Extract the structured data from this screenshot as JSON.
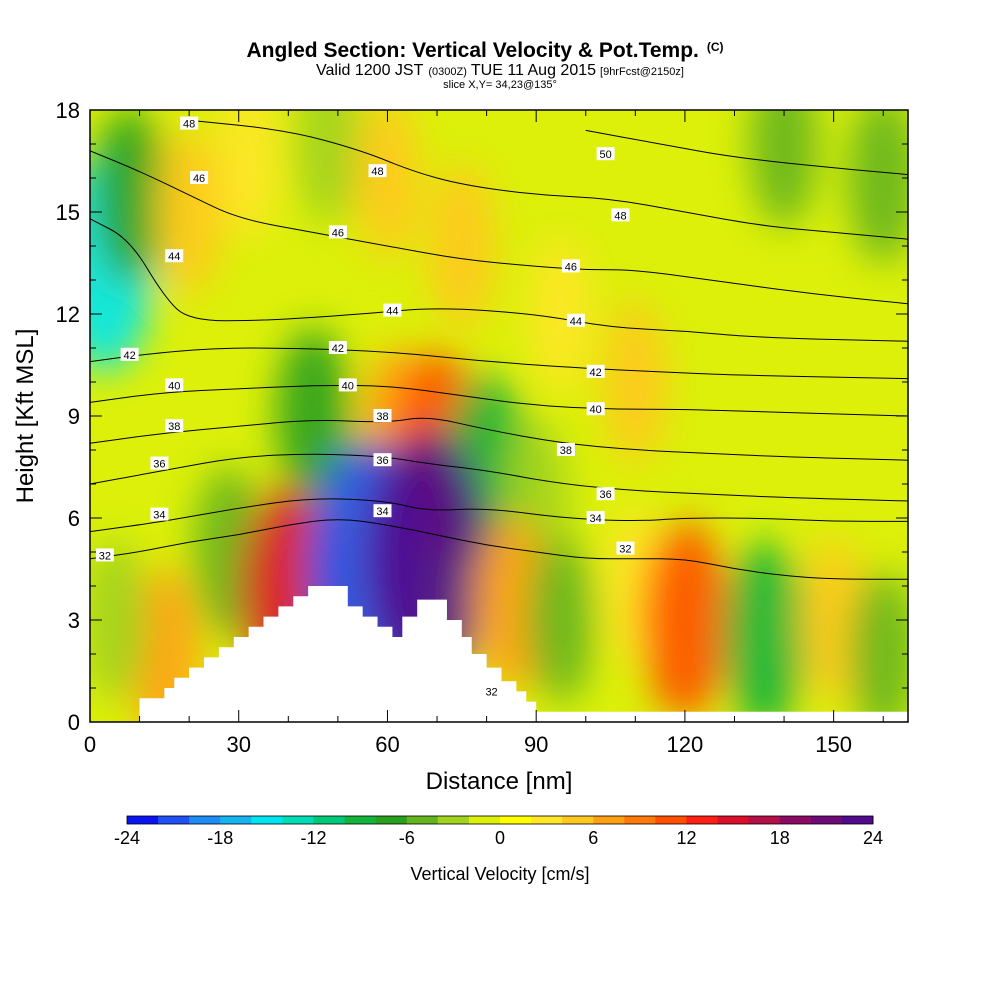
{
  "chart_data": {
    "type": "heatmap",
    "title": "Angled Section: Vertical Velocity & Pot.Temp.",
    "title_unit": "(C)",
    "subtitle_parts": [
      "Valid 1200 JST",
      "(0300Z)",
      "TUE 11 Aug 2015",
      "[9hrFcst@2150z]"
    ],
    "subtitle2": "slice X,Y= 34,23@135°",
    "xlabel": "Distance [nm]",
    "ylabel": "Height [Kft MSL]",
    "xlim": [
      0,
      165
    ],
    "ylim": [
      0,
      18
    ],
    "x_ticks": [
      0,
      30,
      60,
      90,
      120,
      150
    ],
    "y_ticks": [
      0,
      3,
      6,
      9,
      12,
      15,
      18
    ],
    "colorbar": {
      "label": "Vertical Velocity [cm/s]",
      "tick_labels": [
        "-24",
        "-18",
        "-12",
        "-6",
        "0",
        "6",
        "12",
        "18",
        "24"
      ],
      "range": [
        -24,
        24
      ],
      "colors": [
        "#0a14f0",
        "#1e50f5",
        "#1e8cf5",
        "#14b4f0",
        "#00e6f0",
        "#00dcb4",
        "#00c878",
        "#14b43c",
        "#28a01e",
        "#64b41e",
        "#a0d21e",
        "#dcf00a",
        "#ffff00",
        "#ffe628",
        "#ffc81e",
        "#ffa014",
        "#ff780a",
        "#ff5000",
        "#ff1e14",
        "#dc0f28",
        "#b40f46",
        "#8c0a64",
        "#6e0a78",
        "#500a8c"
      ]
    },
    "velocity_cells": [
      {
        "x": 3,
        "y": 13.5,
        "w": -15
      },
      {
        "x": 8,
        "y": 15.5,
        "w": -7
      },
      {
        "x": 20,
        "y": 15,
        "w": 5
      },
      {
        "x": 32,
        "y": 16.5,
        "w": 3
      },
      {
        "x": 48,
        "y": 17,
        "w": -4
      },
      {
        "x": 60,
        "y": 16,
        "w": 4
      },
      {
        "x": 75,
        "y": 14,
        "w": 5
      },
      {
        "x": 95,
        "y": 12,
        "w": 3
      },
      {
        "x": 110,
        "y": 10,
        "w": 4
      },
      {
        "x": 140,
        "y": 17,
        "w": -5
      },
      {
        "x": 160,
        "y": 16,
        "w": -6
      },
      {
        "x": 45,
        "y": 9,
        "w": -7
      },
      {
        "x": 62,
        "y": 8.5,
        "w": 6
      },
      {
        "x": 70,
        "y": 8,
        "w": 11
      },
      {
        "x": 80,
        "y": 7.5,
        "w": -9
      },
      {
        "x": 90,
        "y": 6.5,
        "w": -4
      },
      {
        "x": 28,
        "y": 5,
        "w": -6
      },
      {
        "x": 40,
        "y": 3.8,
        "w": 14
      },
      {
        "x": 56,
        "y": 4.5,
        "w": -22
      },
      {
        "x": 68,
        "y": 4.8,
        "w": 22
      },
      {
        "x": 85,
        "y": 3.5,
        "w": 7
      },
      {
        "x": 95,
        "y": 3,
        "w": -5
      },
      {
        "x": 110,
        "y": 4,
        "w": 3
      },
      {
        "x": 120,
        "y": 3,
        "w": 11
      },
      {
        "x": 136,
        "y": 2.5,
        "w": -10
      },
      {
        "x": 150,
        "y": 3,
        "w": 4
      },
      {
        "x": 160,
        "y": 2,
        "w": -5
      },
      {
        "x": 15,
        "y": 2,
        "w": 6
      },
      {
        "x": 5,
        "y": 3,
        "w": -4
      }
    ],
    "contours": [
      {
        "label": "32",
        "points": [
          [
            0,
            4.8
          ],
          [
            10,
            5.0
          ],
          [
            20,
            5.3
          ],
          [
            30,
            5.5
          ],
          [
            40,
            5.8
          ],
          [
            50,
            6.0
          ],
          [
            60,
            5.8
          ],
          [
            70,
            5.5
          ],
          [
            80,
            5.2
          ],
          [
            90,
            5.0
          ],
          [
            100,
            4.8
          ],
          [
            110,
            4.8
          ],
          [
            120,
            4.8
          ],
          [
            130,
            4.5
          ],
          [
            140,
            4.3
          ],
          [
            150,
            4.2
          ],
          [
            165,
            4.2
          ]
        ]
      },
      {
        "label": "34",
        "points": [
          [
            0,
            5.6
          ],
          [
            15,
            5.9
          ],
          [
            30,
            6.3
          ],
          [
            45,
            6.6
          ],
          [
            60,
            6.5
          ],
          [
            68,
            6.2
          ],
          [
            80,
            6.3
          ],
          [
            95,
            6.0
          ],
          [
            110,
            5.9
          ],
          [
            120,
            6.0
          ],
          [
            135,
            6.0
          ],
          [
            150,
            5.9
          ],
          [
            165,
            5.9
          ]
        ]
      },
      {
        "label": "36",
        "points": [
          [
            0,
            7.0
          ],
          [
            15,
            7.4
          ],
          [
            30,
            7.8
          ],
          [
            45,
            7.9
          ],
          [
            60,
            7.8
          ],
          [
            68,
            7.6
          ],
          [
            80,
            7.4
          ],
          [
            95,
            7.0
          ],
          [
            110,
            6.8
          ],
          [
            125,
            6.7
          ],
          [
            140,
            6.6
          ],
          [
            165,
            6.5
          ]
        ]
      },
      {
        "label": "38",
        "points": [
          [
            0,
            8.2
          ],
          [
            15,
            8.5
          ],
          [
            30,
            8.7
          ],
          [
            45,
            8.9
          ],
          [
            60,
            8.8
          ],
          [
            68,
            9.0
          ],
          [
            80,
            8.6
          ],
          [
            95,
            8.2
          ],
          [
            110,
            8.0
          ],
          [
            125,
            7.9
          ],
          [
            140,
            7.8
          ],
          [
            165,
            7.7
          ]
        ]
      },
      {
        "label": "40",
        "points": [
          [
            0,
            9.4
          ],
          [
            15,
            9.7
          ],
          [
            30,
            9.8
          ],
          [
            45,
            9.9
          ],
          [
            60,
            9.9
          ],
          [
            75,
            9.6
          ],
          [
            90,
            9.3
          ],
          [
            105,
            9.2
          ],
          [
            120,
            9.2
          ],
          [
            140,
            9.1
          ],
          [
            165,
            9.0
          ]
        ]
      },
      {
        "label": "42",
        "points": [
          [
            0,
            10.6
          ],
          [
            10,
            10.8
          ],
          [
            25,
            11.0
          ],
          [
            40,
            11.0
          ],
          [
            60,
            10.9
          ],
          [
            80,
            10.6
          ],
          [
            100,
            10.4
          ],
          [
            115,
            10.3
          ],
          [
            130,
            10.2
          ],
          [
            165,
            10.1
          ]
        ]
      },
      {
        "label": "44",
        "points": [
          [
            0,
            14.8
          ],
          [
            8,
            14.2
          ],
          [
            15,
            12.5
          ],
          [
            20,
            11.8
          ],
          [
            35,
            11.8
          ],
          [
            55,
            12.0
          ],
          [
            70,
            12.2
          ],
          [
            90,
            12.0
          ],
          [
            105,
            11.6
          ],
          [
            120,
            11.5
          ],
          [
            135,
            11.3
          ],
          [
            165,
            11.2
          ]
        ]
      },
      {
        "label": "46",
        "points": [
          [
            0,
            16.8
          ],
          [
            10,
            16.2
          ],
          [
            20,
            15.5
          ],
          [
            30,
            14.8
          ],
          [
            45,
            14.4
          ],
          [
            60,
            14.0
          ],
          [
            75,
            13.6
          ],
          [
            90,
            13.4
          ],
          [
            100,
            13.3
          ],
          [
            110,
            13.3
          ],
          [
            125,
            13.0
          ],
          [
            145,
            12.6
          ],
          [
            165,
            12.3
          ]
        ]
      },
      {
        "label": "48",
        "points": [
          [
            20,
            17.7
          ],
          [
            40,
            17.4
          ],
          [
            55,
            16.8
          ],
          [
            65,
            16.2
          ],
          [
            75,
            15.8
          ],
          [
            90,
            15.5
          ],
          [
            105,
            15.4
          ],
          [
            120,
            15.0
          ],
          [
            135,
            14.6
          ],
          [
            150,
            14.4
          ],
          [
            165,
            14.2
          ]
        ]
      },
      {
        "label": "50",
        "points": [
          [
            100,
            17.4
          ],
          [
            115,
            17.0
          ],
          [
            130,
            16.6
          ],
          [
            150,
            16.3
          ],
          [
            165,
            16.1
          ]
        ]
      }
    ],
    "contour_labels": [
      {
        "text": "48",
        "x": 20,
        "y": 17.6
      },
      {
        "text": "46",
        "x": 22,
        "y": 16.0
      },
      {
        "text": "44",
        "x": 17,
        "y": 13.7
      },
      {
        "text": "42",
        "x": 8,
        "y": 10.8
      },
      {
        "text": "40",
        "x": 17,
        "y": 9.9
      },
      {
        "text": "38",
        "x": 17,
        "y": 8.7
      },
      {
        "text": "36",
        "x": 14,
        "y": 7.6
      },
      {
        "text": "34",
        "x": 14,
        "y": 6.1
      },
      {
        "text": "32",
        "x": 3,
        "y": 4.9
      },
      {
        "text": "48",
        "x": 58,
        "y": 16.2
      },
      {
        "text": "46",
        "x": 50,
        "y": 14.4
      },
      {
        "text": "44",
        "x": 61,
        "y": 12.1
      },
      {
        "text": "42",
        "x": 50,
        "y": 11.0
      },
      {
        "text": "40",
        "x": 52,
        "y": 9.9
      },
      {
        "text": "38",
        "x": 59,
        "y": 9.0
      },
      {
        "text": "36",
        "x": 59,
        "y": 7.7
      },
      {
        "text": "34",
        "x": 59,
        "y": 6.2
      },
      {
        "text": "50",
        "x": 104,
        "y": 16.7
      },
      {
        "text": "48",
        "x": 107,
        "y": 14.9
      },
      {
        "text": "46",
        "x": 97,
        "y": 13.4
      },
      {
        "text": "44",
        "x": 98,
        "y": 11.8
      },
      {
        "text": "42",
        "x": 102,
        "y": 10.3
      },
      {
        "text": "40",
        "x": 102,
        "y": 9.2
      },
      {
        "text": "38",
        "x": 96,
        "y": 8.0
      },
      {
        "text": "36",
        "x": 104,
        "y": 6.7
      },
      {
        "text": "34",
        "x": 102,
        "y": 6.0
      },
      {
        "text": "32",
        "x": 108,
        "y": 5.1
      },
      {
        "text": "32",
        "x": 81,
        "y": 0.9
      }
    ],
    "terrain": [
      [
        0,
        0
      ],
      [
        10,
        0
      ],
      [
        10,
        0.7
      ],
      [
        15,
        0.7
      ],
      [
        15,
        1.0
      ],
      [
        17,
        1.0
      ],
      [
        17,
        1.3
      ],
      [
        20,
        1.3
      ],
      [
        20,
        1.6
      ],
      [
        23,
        1.6
      ],
      [
        23,
        1.9
      ],
      [
        26,
        1.9
      ],
      [
        26,
        2.2
      ],
      [
        29,
        2.2
      ],
      [
        29,
        2.5
      ],
      [
        32,
        2.5
      ],
      [
        32,
        2.8
      ],
      [
        35,
        2.8
      ],
      [
        35,
        3.1
      ],
      [
        38,
        3.1
      ],
      [
        38,
        3.4
      ],
      [
        41,
        3.4
      ],
      [
        41,
        3.7
      ],
      [
        44,
        3.7
      ],
      [
        44,
        4.0
      ],
      [
        52,
        4.0
      ],
      [
        52,
        3.4
      ],
      [
        55,
        3.4
      ],
      [
        55,
        3.1
      ],
      [
        58,
        3.1
      ],
      [
        58,
        2.8
      ],
      [
        61,
        2.8
      ],
      [
        61,
        2.5
      ],
      [
        63,
        2.5
      ],
      [
        63,
        3.1
      ],
      [
        66,
        3.1
      ],
      [
        66,
        3.6
      ],
      [
        72,
        3.6
      ],
      [
        72,
        3.0
      ],
      [
        75,
        3.0
      ],
      [
        75,
        2.5
      ],
      [
        77,
        2.5
      ],
      [
        77,
        2.0
      ],
      [
        80,
        2.0
      ],
      [
        80,
        1.6
      ],
      [
        83,
        1.6
      ],
      [
        83,
        1.2
      ],
      [
        86,
        1.2
      ],
      [
        86,
        0.9
      ],
      [
        88,
        0.9
      ],
      [
        88,
        0.6
      ],
      [
        90,
        0.6
      ],
      [
        90,
        0.3
      ],
      [
        165,
        0.3
      ],
      [
        165,
        0
      ]
    ]
  }
}
